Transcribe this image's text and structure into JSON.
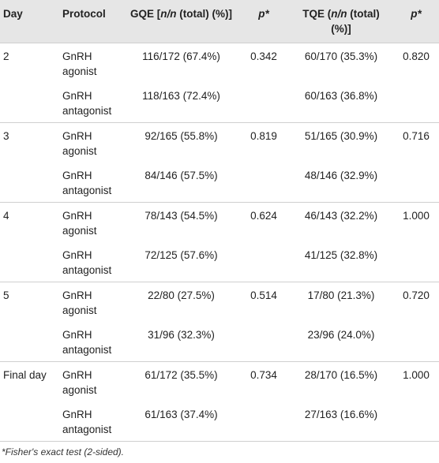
{
  "header": {
    "day": "Day",
    "protocol": "Protocol",
    "gqe_pre": "GQE [",
    "gqe_nn": "n/n",
    "gqe_post": " (total) (%)]",
    "p1": "p*",
    "tqe_pre": "TQE (",
    "tqe_nn": "n/n",
    "tqe_post": " (total) (%)]",
    "p2": "p*"
  },
  "rows": [
    {
      "day": "2",
      "protocol": "GnRH agonist",
      "gqe": "116/172 (67.4%)",
      "p1": "0.342",
      "tqe": "60/170 (35.3%)",
      "p2": "0.820"
    },
    {
      "day": "",
      "protocol": "GnRH antagonist",
      "gqe": "118/163 (72.4%)",
      "p1": "",
      "tqe": "60/163 (36.8%)",
      "p2": ""
    },
    {
      "day": "3",
      "protocol": "GnRH agonist",
      "gqe": "92/165 (55.8%)",
      "p1": "0.819",
      "tqe": "51/165 (30.9%)",
      "p2": "0.716"
    },
    {
      "day": "",
      "protocol": "GnRH antagonist",
      "gqe": "84/146 (57.5%)",
      "p1": "",
      "tqe": "48/146 (32.9%)",
      "p2": ""
    },
    {
      "day": "4",
      "protocol": "GnRH agonist",
      "gqe": "78/143 (54.5%)",
      "p1": "0.624",
      "tqe": "46/143 (32.2%)",
      "p2": "1.000"
    },
    {
      "day": "",
      "protocol": "GnRH antagonist",
      "gqe": "72/125 (57.6%)",
      "p1": "",
      "tqe": "41/125 (32.8%)",
      "p2": ""
    },
    {
      "day": "5",
      "protocol": "GnRH agonist",
      "gqe": "22/80 (27.5%)",
      "p1": "0.514",
      "tqe": "17/80 (21.3%)",
      "p2": "0.720"
    },
    {
      "day": "",
      "protocol": "GnRH antagonist",
      "gqe": "31/96 (32.3%)",
      "p1": "",
      "tqe": "23/96 (24.0%)",
      "p2": ""
    },
    {
      "day": "Final day",
      "protocol": "GnRH agonist",
      "gqe": "61/172 (35.5%)",
      "p1": "0.734",
      "tqe": "28/170 (16.5%)",
      "p2": "1.000"
    },
    {
      "day": "",
      "protocol": "GnRH antagonist",
      "gqe": "61/163 (37.4%)",
      "p1": "",
      "tqe": "27/163 (16.6%)",
      "p2": ""
    }
  ],
  "footnote": "*Fisher's exact test (2-sided).",
  "colors": {
    "header_bg": "#e6e6e6",
    "rule": "#cfcfcf",
    "text": "#222222"
  }
}
